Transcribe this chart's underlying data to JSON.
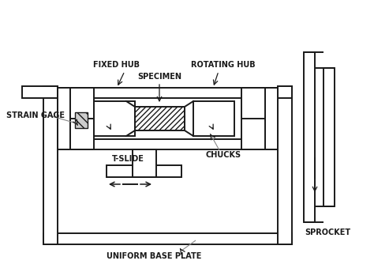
{
  "line_color": "#1a1a1a",
  "labels": {
    "strain_gage": "STRAIN GAGE",
    "fixed_hub": "FIXED HUB",
    "specimen": "SPECIMEN",
    "rotating_hub": "ROTATING HUB",
    "t_slide": "T-SLIDE",
    "chucks": "CHUCKS",
    "base_plate": "UNIFORM BASE PLATE",
    "sprocket": "SPROCKET"
  },
  "figsize": [
    4.74,
    3.44
  ],
  "dpi": 100
}
